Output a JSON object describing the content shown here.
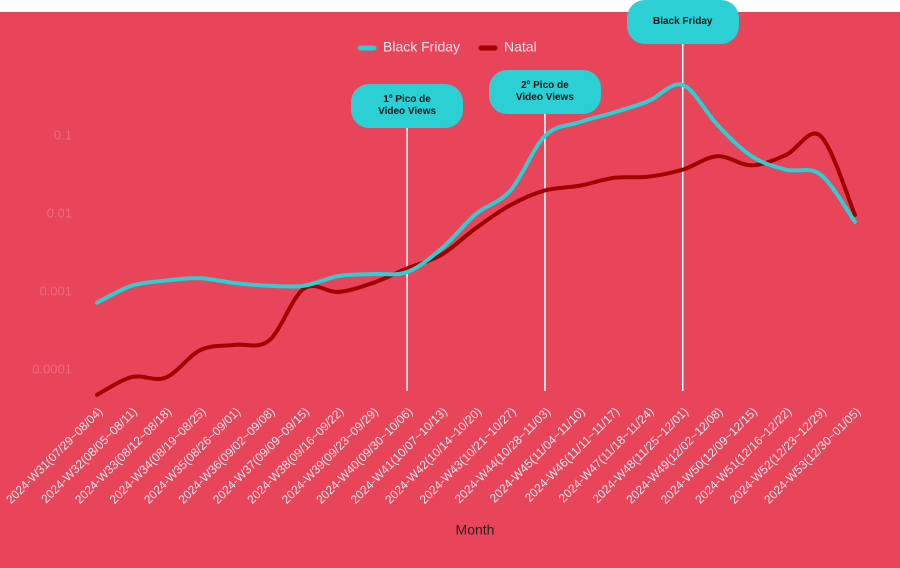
{
  "chart_data": {
    "type": "line",
    "categories": [
      "2024-W31(07/29~08/04)",
      "2024-W32(08/05~08/11)",
      "2024-W33(08/12~08/18)",
      "2024-W34(08/19~08/25)",
      "2024-W35(08/26~09/01)",
      "2024-W36(09/02~09/08)",
      "2024-W37(09/09~09/15)",
      "2024-W38(09/16~09/22)",
      "2024-W39(09/23~09/29)",
      "2024-W40(09/30~10/06)",
      "2024-W41(10/07~10/13)",
      "2024-W42(10/14~10/20)",
      "2024-W43(10/21~10/27)",
      "2024-W44(10/28~11/03)",
      "2024-W45(11/04~11/10)",
      "2024-W46(11/11~11/17)",
      "2024-W47(11/18~11/24)",
      "2024-W48(11/25~12/01)",
      "2024-W49(12/02~12/08)",
      "2024-W50(12/09~12/15)",
      "2024-W51(12/16~12/22)",
      "2024-W52(12/23~12/29)",
      "2024-W53(12/30~01/05)"
    ],
    "series": [
      {
        "name": "Black Friday",
        "color": "#2ccfd3",
        "values": [
          0.00073,
          0.0012,
          0.0014,
          0.0015,
          0.0013,
          0.0012,
          0.0012,
          0.0016,
          0.0017,
          0.0018,
          0.0036,
          0.01,
          0.02,
          0.1,
          0.15,
          0.2,
          0.28,
          0.45,
          0.14,
          0.055,
          0.037,
          0.032,
          0.0079
        ]
      },
      {
        "name": "Natal",
        "color": "#a00000",
        "values": [
          4.8e-05,
          8.1e-05,
          8e-05,
          0.00018,
          0.00021,
          0.00024,
          0.0011,
          0.001,
          0.0013,
          0.002,
          0.003,
          0.0066,
          0.013,
          0.02,
          0.023,
          0.029,
          0.03,
          0.037,
          0.055,
          0.042,
          0.057,
          0.1,
          0.0097
        ]
      }
    ],
    "xlabel": "Month",
    "ylim": [
      4e-05,
      4
    ],
    "yticks": [
      0.0001,
      0.001,
      0.01,
      0.1
    ],
    "log_scale": true,
    "legend": "top",
    "background": "#e8445a",
    "annotations": [
      {
        "label": "1º Pico de Video Views",
        "x": "2024-W40(09/30~10/06)"
      },
      {
        "label": "2º Pico de Video Views",
        "x": "2024-W44(10/28~11/03)"
      },
      {
        "label": "Black Friday",
        "x": "2024-W48(11/25~12/01)"
      }
    ]
  }
}
